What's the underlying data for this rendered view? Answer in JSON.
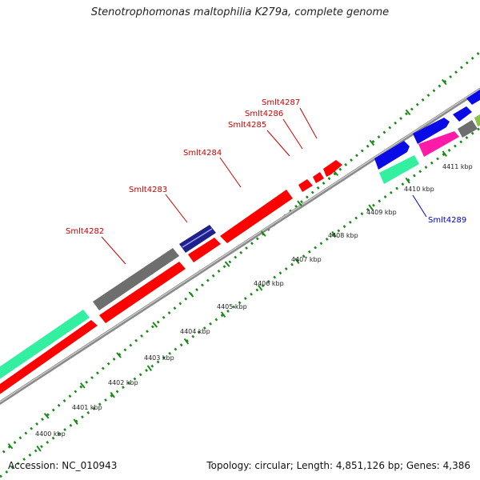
{
  "title": "Stenotrophomonas maltophilia K279a, complete genome",
  "footer": {
    "accession": "Accession: NC_010943",
    "summary": "Topology: circular; Length: 4,851,126 bp; Genes: 4,386"
  },
  "axis": {
    "tick_labels": [
      "4400 kbp",
      "4401 kbp",
      "4402 kbp",
      "4403 kbp",
      "4404 kbp",
      "4405 kbp",
      "4406 kbp",
      "4407 kbp",
      "4408 kbp",
      "4409 kbp",
      "4410 kbp",
      "4411 kbp"
    ]
  },
  "gene_labels": [
    {
      "text": "Smlt4282",
      "color": "#cc0000"
    },
    {
      "text": "Smlt4283",
      "color": "#cc0000"
    },
    {
      "text": "Smlt4284",
      "color": "#cc0000"
    },
    {
      "text": "Smlt4285",
      "color": "#cc0000"
    },
    {
      "text": "Smlt4286",
      "color": "#cc0000"
    },
    {
      "text": "Smlt4287",
      "color": "#cc0000"
    },
    {
      "text": "Smlt4289",
      "color": "#0000cc"
    }
  ],
  "colors": {
    "red": "#ff0000",
    "gray": "#6e6e6e",
    "mint": "#33f0a0",
    "blue": "#0a0ae6",
    "magenta": "#ff1aa8",
    "navy": "#1a1a80",
    "olive": "#8bc34a",
    "backbone": "#888888",
    "dots": "#1a8a1a"
  }
}
